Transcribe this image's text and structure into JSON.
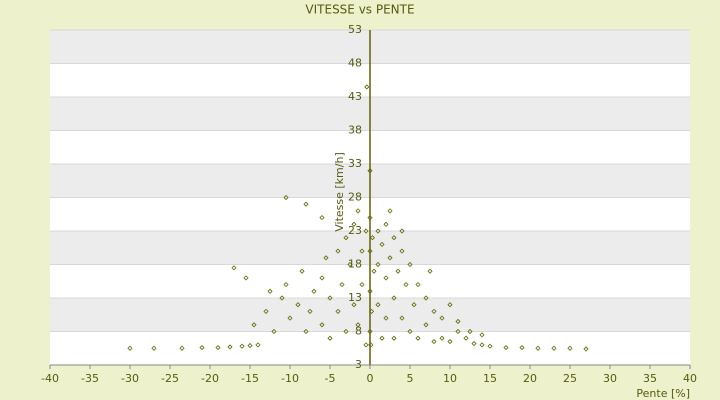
{
  "chart_data": {
    "type": "scatter",
    "title": "VITESSE vs PENTE",
    "x_label": "Pente [%]",
    "y_label": "Vitesse [km/h]",
    "color": "#5f6400",
    "grid": true,
    "xlim": [
      -40,
      40
    ],
    "xticks": [
      -40,
      -35,
      -30,
      -25,
      -20,
      -15,
      -10,
      -5,
      0,
      5,
      10,
      15,
      20,
      25,
      30,
      35,
      40
    ],
    "ylim": [
      3,
      53
    ],
    "yticks": [
      3,
      8,
      13,
      18,
      23,
      28,
      33,
      38,
      43,
      48,
      53
    ],
    "x": [
      -30,
      -27,
      -23.5,
      -21,
      -19,
      -17.5,
      -16,
      -15,
      -14,
      17,
      19,
      21,
      23,
      25,
      27,
      15,
      14,
      13,
      -14.5,
      -13,
      -12,
      -11,
      -10,
      -10.5,
      -9,
      -8,
      -8.5,
      -7,
      -7.5,
      -6,
      -6,
      -5.5,
      -5,
      -5,
      -4,
      -4,
      -3.5,
      -3,
      -3,
      -2.5,
      -2,
      -2,
      -1.5,
      -1.5,
      -1,
      -1,
      -0.5,
      -0.5,
      -15.5,
      -17,
      -10.5,
      -8,
      -6,
      -12.5,
      0,
      0,
      0,
      0,
      0,
      -0.4,
      0.3,
      0.5,
      0.2,
      0.1,
      1,
      1,
      1,
      1.5,
      1.5,
      2,
      2,
      2,
      2.5,
      3,
      3,
      3,
      3.5,
      4,
      4,
      4.5,
      5,
      5,
      5.5,
      6,
      6,
      7,
      7,
      8,
      8,
      9,
      9,
      10,
      10,
      11,
      11,
      12,
      12.5,
      14,
      7.5,
      4,
      2.5
    ],
    "values": [
      5.5,
      5.5,
      5.5,
      5.6,
      5.6,
      5.7,
      5.8,
      5.9,
      6,
      5.6,
      5.6,
      5.5,
      5.5,
      5.5,
      5.4,
      5.8,
      6,
      6.2,
      9,
      11,
      8,
      13,
      10,
      15,
      12,
      8,
      17,
      14,
      11,
      9,
      16,
      19,
      13,
      7,
      20,
      11,
      15,
      22,
      8,
      18,
      24,
      12,
      26,
      9,
      20,
      15,
      23,
      6,
      16,
      17.5,
      28,
      27,
      25,
      14,
      25,
      20,
      14,
      8,
      32,
      44.5,
      22,
      17,
      11,
      6,
      23,
      18,
      12,
      21,
      7,
      24,
      16,
      10,
      19,
      22,
      13,
      7,
      17,
      20,
      10,
      15,
      18,
      8,
      12,
      15,
      7,
      13,
      9,
      11,
      6.5,
      10,
      7,
      12,
      6.5,
      8,
      9.5,
      7,
      8,
      7.5,
      17,
      23,
      26
    ]
  }
}
